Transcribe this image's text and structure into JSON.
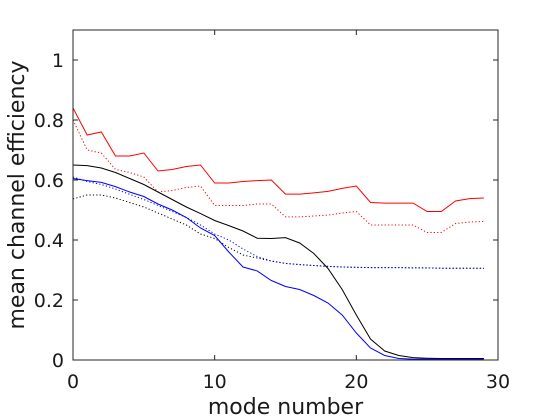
{
  "chart_data": {
    "type": "line",
    "xlabel": "mode number",
    "ylabel": "mean channel efficiency",
    "xlim": [
      0,
      30
    ],
    "ylim": [
      0,
      1.1
    ],
    "xticks": [
      0,
      10,
      20,
      30
    ],
    "yticks": [
      0,
      0.2,
      0.4,
      0.6,
      0.8,
      1
    ],
    "ytick_labels": [
      "0",
      "0.2",
      "0.4",
      "0.6",
      "0.8",
      "1"
    ],
    "grid": false,
    "box": true,
    "x": [
      0,
      1,
      2,
      3,
      4,
      5,
      6,
      7,
      8,
      9,
      10,
      11,
      12,
      13,
      14,
      15,
      16,
      17,
      18,
      19,
      20,
      21,
      22,
      23,
      24,
      25,
      26,
      27,
      28,
      29
    ],
    "series": [
      {
        "color": "#ff0000",
        "style": "solid",
        "values": [
          0.84,
          0.75,
          0.76,
          0.68,
          0.68,
          0.69,
          0.63,
          0.635,
          0.645,
          0.65,
          0.59,
          0.59,
          0.595,
          0.598,
          0.6,
          0.553,
          0.553,
          0.557,
          0.562,
          0.572,
          0.58,
          0.525,
          0.523,
          0.523,
          0.523,
          0.495,
          0.495,
          0.53,
          0.538,
          0.54
        ]
      },
      {
        "color": "#ff0000",
        "style": "dotted",
        "values": [
          0.8,
          0.7,
          0.69,
          0.635,
          0.625,
          0.61,
          0.56,
          0.565,
          0.575,
          0.58,
          0.515,
          0.515,
          0.515,
          0.52,
          0.52,
          0.477,
          0.477,
          0.48,
          0.483,
          0.49,
          0.495,
          0.45,
          0.45,
          0.45,
          0.45,
          0.425,
          0.425,
          0.455,
          0.46,
          0.462
        ]
      },
      {
        "color": "#000000",
        "style": "solid",
        "values": [
          0.65,
          0.648,
          0.64,
          0.625,
          0.605,
          0.585,
          0.56,
          0.535,
          0.51,
          0.488,
          0.465,
          0.448,
          0.43,
          0.406,
          0.405,
          0.408,
          0.39,
          0.355,
          0.305,
          0.235,
          0.15,
          0.07,
          0.03,
          0.015,
          0.008,
          0.006,
          0.005,
          0.005,
          0.005,
          0.005
        ]
      },
      {
        "color": "#000000",
        "style": "dotted",
        "values": [
          0.537,
          0.55,
          0.55,
          0.54,
          0.525,
          0.51,
          0.49,
          0.47,
          0.45,
          0.42,
          0.405,
          0.375,
          0.35,
          0.34,
          0.33,
          0.322,
          0.318,
          0.315,
          0.312,
          0.31,
          0.309,
          0.308,
          0.308,
          0.308,
          0.307,
          0.307,
          0.306,
          0.306,
          0.306,
          0.306
        ]
      },
      {
        "color": "#0000ff",
        "style": "solid",
        "values": [
          0.605,
          0.598,
          0.592,
          0.578,
          0.56,
          0.545,
          0.52,
          0.5,
          0.475,
          0.44,
          0.415,
          0.36,
          0.31,
          0.297,
          0.265,
          0.245,
          0.235,
          0.215,
          0.19,
          0.15,
          0.09,
          0.04,
          0.015,
          0.005,
          0.003,
          0.003,
          0.003,
          0.003,
          0.003,
          0.003
        ]
      },
      {
        "color": "#0000ff",
        "style": "dotted",
        "values": [
          0.61,
          0.595,
          0.585,
          0.57,
          0.552,
          0.535,
          0.515,
          0.495,
          0.475,
          0.45,
          0.42,
          0.4,
          0.37,
          0.345,
          0.33,
          0.322,
          0.318,
          0.315,
          0.312,
          0.31,
          0.309,
          0.308,
          0.308,
          0.308,
          0.307,
          0.307,
          0.306,
          0.306,
          0.306,
          0.306
        ]
      }
    ]
  }
}
